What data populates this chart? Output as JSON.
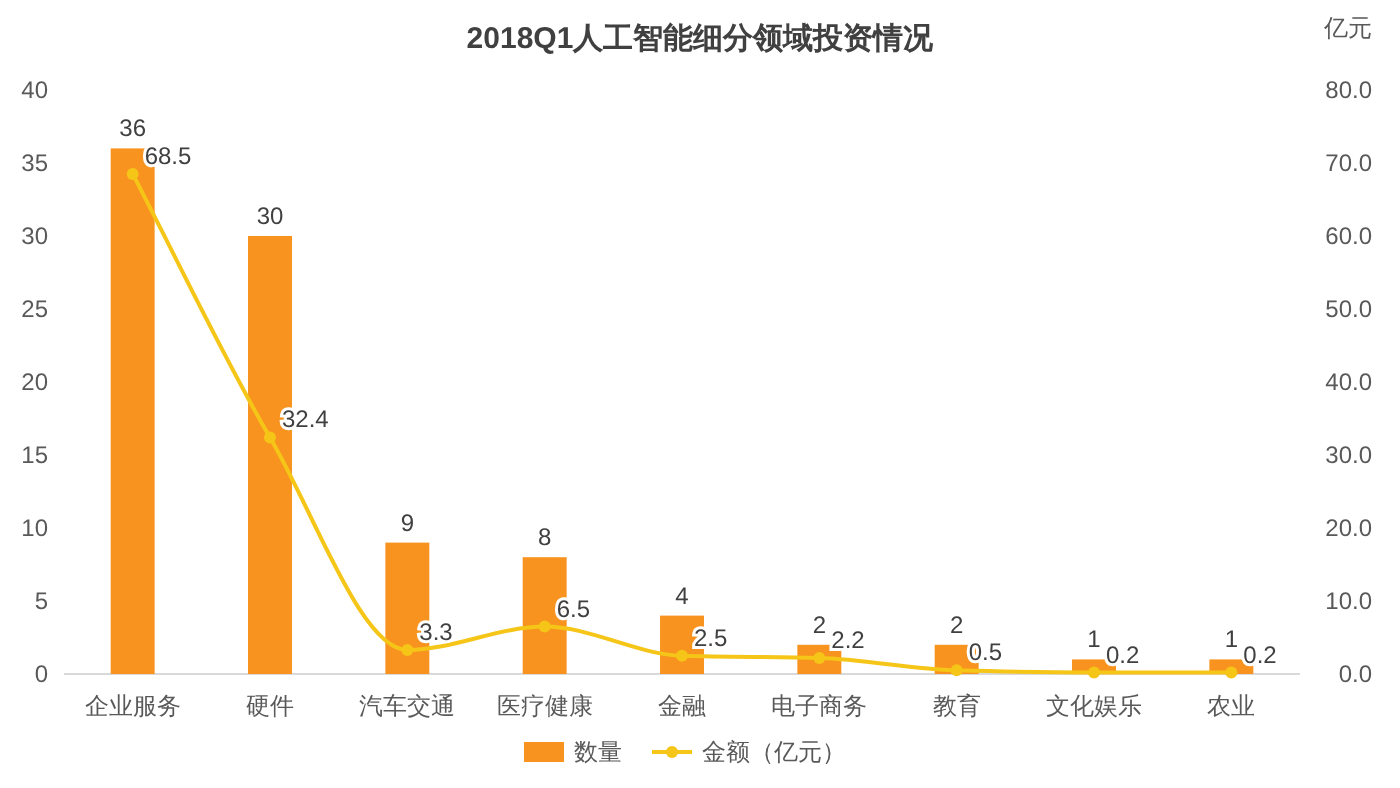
{
  "chart_data": {
    "type": "bar",
    "title": "2018Q1人工智能细分领域投资情况",
    "y2label": "亿元",
    "categories": [
      "企业服务",
      "硬件",
      "汽车交通",
      "医疗健康",
      "金融",
      "电子商务",
      "教育",
      "文化娱乐",
      "农业"
    ],
    "series": [
      {
        "name": "数量",
        "color": "#f7931e",
        "values": [
          36,
          30,
          9,
          8,
          4,
          2,
          2,
          1,
          1
        ]
      },
      {
        "name": "金额（亿元）",
        "type": "line",
        "axis": "y2",
        "color": "#f5c518",
        "marker": "circle",
        "values": [
          68.5,
          32.4,
          3.3,
          6.5,
          2.5,
          2.2,
          0.5,
          0.2,
          0.2
        ]
      }
    ],
    "ylim": [
      0,
      40
    ],
    "yticks": [
      0,
      5,
      10,
      15,
      20,
      25,
      30,
      35,
      40
    ],
    "y2lim": [
      0,
      80
    ],
    "y2ticks": [
      {
        "value": 0,
        "label": "0.0"
      },
      {
        "value": 10,
        "label": "10.0"
      },
      {
        "value": 20,
        "label": "20.0"
      },
      {
        "value": 30,
        "label": "30.0"
      },
      {
        "value": 40,
        "label": "40.0"
      },
      {
        "value": 50,
        "label": "50.0"
      },
      {
        "value": 60,
        "label": "60.0"
      },
      {
        "value": 70,
        "label": "70.0"
      },
      {
        "value": 80,
        "label": "80.0"
      }
    ],
    "data_labels": true,
    "legend": "bottom"
  }
}
